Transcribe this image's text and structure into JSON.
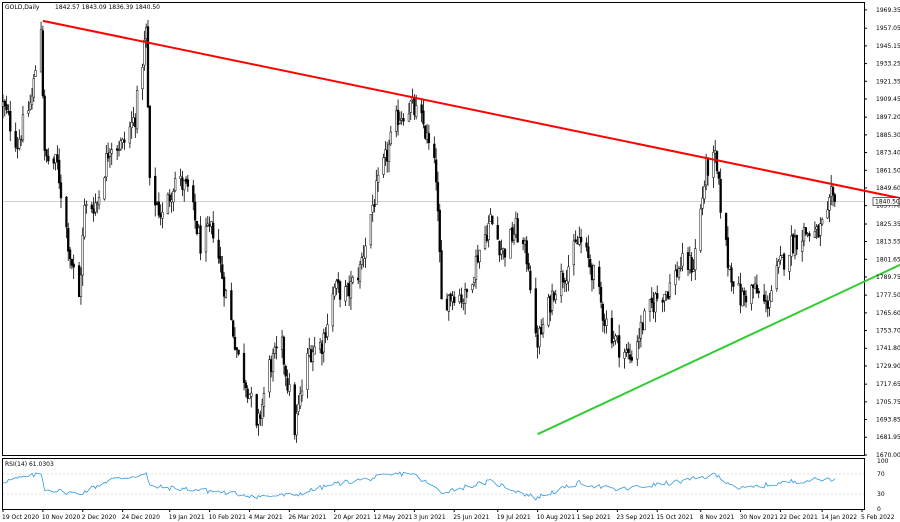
{
  "header": {
    "symbol": "GOLD,Daily",
    "ohlc": "1842.57 1843.09 1836.39 1840.50"
  },
  "rsi": {
    "label": "RSI(14) 61.0303",
    "levels": [
      "100",
      "70",
      "30",
      "0"
    ]
  },
  "chart_data": [
    {
      "type": "candlestick",
      "title": "GOLD,Daily",
      "y_unit": "USD",
      "ylim": [
        1670.0,
        1974.0
      ],
      "y_ticks": [
        "1969.35",
        "1957.05",
        "1945.15",
        "1933.25",
        "1921.35",
        "1909.45",
        "1897.20",
        "1885.30",
        "1873.40",
        "1861.50",
        "1849.60",
        "1837.70",
        "1825.35",
        "1813.55",
        "1801.65",
        "1789.75",
        "1777.50",
        "1765.60",
        "1753.70",
        "1741.80",
        "1729.90",
        "1717.65",
        "1705.75",
        "1693.85",
        "1681.95",
        "1670.00"
      ],
      "last_price": "1840.50",
      "x_labels": [
        "19 Oct 2020",
        "10 Nov 2020",
        "2 Dec 2020",
        "24 Dec 2020",
        "19 Jan 2021",
        "10 Feb 2021",
        "4 Mar 2021",
        "26 Mar 2021",
        "20 Apr 2021",
        "12 May 2021",
        "3 Jun 2021",
        "25 Jun 2021",
        "19 Jul 2021",
        "10 Aug 2021",
        "1 Sep 2021",
        "23 Sep 2021",
        "15 Oct 2021",
        "8 Nov 2021",
        "30 Nov 2021",
        "22 Dec 2021",
        "14 Jan 2022",
        "5 Feb 2022"
      ],
      "close_path": [
        [
          "19 Oct 2020",
          1905
        ],
        [
          "27 Oct 2020",
          1880
        ],
        [
          "4 Nov 2020",
          1910
        ],
        [
          "9 Nov 2020",
          1960
        ],
        [
          "11 Nov 2020",
          1870
        ],
        [
          "18 Nov 2020",
          1865
        ],
        [
          "25 Nov 2020",
          1805
        ],
        [
          "30 Nov 2020",
          1775
        ],
        [
          "3 Dec 2020",
          1835
        ],
        [
          "10 Dec 2020",
          1840
        ],
        [
          "17 Dec 2020",
          1880
        ],
        [
          "24 Dec 2020",
          1878
        ],
        [
          "31 Dec 2020",
          1898
        ],
        [
          "6 Jan 2021",
          1955
        ],
        [
          "8 Jan 2021",
          1850
        ],
        [
          "15 Jan 2021",
          1830
        ],
        [
          "22 Jan 2021",
          1856
        ],
        [
          "29 Jan 2021",
          1848
        ],
        [
          "5 Feb 2021",
          1812
        ],
        [
          "12 Feb 2021",
          1822
        ],
        [
          "19 Feb 2021",
          1778
        ],
        [
          "26 Feb 2021",
          1735
        ],
        [
          "4 Mar 2021",
          1712
        ],
        [
          "8 Mar 2021",
          1685
        ],
        [
          "15 Mar 2021",
          1730
        ],
        [
          "22 Mar 2021",
          1742
        ],
        [
          "29 Mar 2021",
          1688
        ],
        [
          "6 Apr 2021",
          1740
        ],
        [
          "13 Apr 2021",
          1745
        ],
        [
          "20 Apr 2021",
          1782
        ],
        [
          "27 Apr 2021",
          1778
        ],
        [
          "4 May 2021",
          1795
        ],
        [
          "11 May 2021",
          1838
        ],
        [
          "18 May 2021",
          1868
        ],
        [
          "25 May 2021",
          1898
        ],
        [
          "1 Jun 2021",
          1905
        ],
        [
          "8 Jun 2021",
          1892
        ],
        [
          "15 Jun 2021",
          1858
        ],
        [
          "18 Jun 2021",
          1772
        ],
        [
          "25 Jun 2021",
          1780
        ],
        [
          "1 Jul 2021",
          1775
        ],
        [
          "8 Jul 2021",
          1805
        ],
        [
          "15 Jul 2021",
          1828
        ],
        [
          "22 Jul 2021",
          1806
        ],
        [
          "29 Jul 2021",
          1822
        ],
        [
          "5 Aug 2021",
          1800
        ],
        [
          "9 Aug 2021",
          1745
        ],
        [
          "12 Aug 2021",
          1752
        ],
        [
          "19 Aug 2021",
          1782
        ],
        [
          "26 Aug 2021",
          1795
        ],
        [
          "2 Sep 2021",
          1815
        ],
        [
          "9 Sep 2021",
          1795
        ],
        [
          "16 Sep 2021",
          1762
        ],
        [
          "23 Sep 2021",
          1745
        ],
        [
          "30 Sep 2021",
          1735
        ],
        [
          "7 Oct 2021",
          1758
        ],
        [
          "14 Oct 2021",
          1775
        ],
        [
          "21 Oct 2021",
          1782
        ],
        [
          "28 Oct 2021",
          1798
        ],
        [
          "4 Nov 2021",
          1798
        ],
        [
          "11 Nov 2021",
          1862
        ],
        [
          "16 Nov 2021",
          1868
        ],
        [
          "23 Nov 2021",
          1800
        ],
        [
          "30 Nov 2021",
          1775
        ],
        [
          "7 Dec 2021",
          1782
        ],
        [
          "14 Dec 2021",
          1770
        ],
        [
          "21 Dec 2021",
          1795
        ],
        [
          "28 Dec 2021",
          1812
        ],
        [
          "4 Jan 2022",
          1820
        ],
        [
          "11 Jan 2022",
          1818
        ],
        [
          "17 Jan 2022",
          1828
        ],
        [
          "19 Jan 2022",
          1843
        ],
        [
          "21 Jan 2022",
          1840.5
        ]
      ],
      "trendlines": [
        {
          "color": "#ff0000",
          "from": [
            "10 Nov 2020",
            1962
          ],
          "to": [
            "5 Mar 2022",
            1841
          ]
        },
        {
          "color": "#33cc33",
          "from": [
            "10 Aug 2021",
            1684
          ],
          "to": [
            "7 Mar 2022",
            1803
          ]
        }
      ]
    },
    {
      "type": "line",
      "title": "RSI(14) 61.0303",
      "ylim": [
        0,
        100
      ],
      "levels": [
        70,
        30
      ],
      "color": "#3399dd",
      "last_value": 61.0303,
      "series": [
        [
          "19 Oct 2020",
          55
        ],
        [
          "9 Nov 2020",
          70
        ],
        [
          "11 Nov 2020",
          40
        ],
        [
          "30 Nov 2020",
          30
        ],
        [
          "17 Dec 2020",
          58
        ],
        [
          "6 Jan 2021",
          70
        ],
        [
          "8 Jan 2021",
          45
        ],
        [
          "5 Feb 2021",
          38
        ],
        [
          "26 Feb 2021",
          30
        ],
        [
          "8 Mar 2021",
          25
        ],
        [
          "29 Mar 2021",
          28
        ],
        [
          "20 Apr 2021",
          50
        ],
        [
          "25 May 2021",
          70
        ],
        [
          "1 Jun 2021",
          72
        ],
        [
          "18 Jun 2021",
          34
        ],
        [
          "15 Jul 2021",
          55
        ],
        [
          "9 Aug 2021",
          22
        ],
        [
          "2 Sep 2021",
          52
        ],
        [
          "23 Sep 2021",
          38
        ],
        [
          "28 Oct 2021",
          55
        ],
        [
          "16 Nov 2021",
          68
        ],
        [
          "30 Nov 2021",
          40
        ],
        [
          "28 Dec 2021",
          55
        ],
        [
          "21 Jan 2022",
          61
        ]
      ]
    }
  ]
}
